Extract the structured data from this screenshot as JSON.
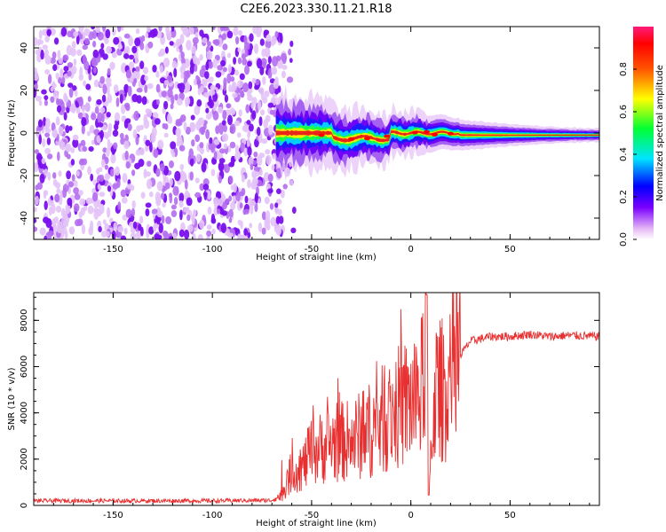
{
  "title": "C2E6.2023.330.11.21.R18",
  "colors": {
    "snr_line": "#e83030",
    "axis": "#000000"
  },
  "chart_data": [
    {
      "type": "heatmap",
      "xlabel": "Height of straight line (km)",
      "ylabel": "Frequency (Hz)",
      "xlim": [
        -190,
        95
      ],
      "ylim": [
        -50,
        50
      ],
      "xticks": [
        -150,
        -100,
        -50,
        0,
        50
      ],
      "yticks": [
        -40,
        -20,
        0,
        20,
        40
      ],
      "colorbar": {
        "label": "Normalized spectral amplitude",
        "range": [
          0,
          1
        ],
        "ticks": [
          "0.0",
          "0.2",
          "0.4",
          "0.6",
          "0.8"
        ],
        "colormap": "rainbow (white, purple, blue, cyan, green, yellow, orange, red, pink)"
      },
      "features": {
        "noise_region_x": [
          -190,
          -65
        ],
        "signal_center_freq": 0,
        "signal_freq_halfwidth_near_minus60": 10,
        "signal_freq_halfwidth_at_plus90": 2
      }
    },
    {
      "type": "line",
      "xlabel": "Height of straight line (km)",
      "ylabel": "SNR (10 * v/v)",
      "xlim": [
        -190,
        95
      ],
      "ylim": [
        0,
        9200
      ],
      "xticks": [
        -150,
        -100,
        -50,
        0,
        50
      ],
      "yticks": [
        0,
        2000,
        4000,
        6000,
        8000
      ],
      "series": [
        {
          "points": [
            [
              -190,
              200
            ],
            [
              -150,
              200
            ],
            [
              -100,
              200
            ],
            [
              -70,
              220
            ],
            [
              -65,
              450
            ],
            [
              -60,
              1500
            ],
            [
              -55,
              1600
            ],
            [
              -50,
              2300
            ],
            [
              -40,
              2700
            ],
            [
              -30,
              2800
            ],
            [
              -20,
              3300
            ],
            [
              -10,
              4000
            ],
            [
              -5,
              4300
            ],
            [
              0,
              4500
            ],
            [
              5,
              4700
            ],
            [
              8,
              8200
            ],
            [
              9,
              700
            ],
            [
              12,
              5000
            ],
            [
              15,
              4900
            ],
            [
              20,
              5500
            ],
            [
              25,
              6500
            ],
            [
              30,
              7100
            ],
            [
              40,
              7300
            ],
            [
              50,
              7300
            ],
            [
              60,
              7400
            ],
            [
              70,
              7300
            ],
            [
              80,
              7350
            ],
            [
              95,
              7300
            ]
          ]
        }
      ]
    }
  ]
}
